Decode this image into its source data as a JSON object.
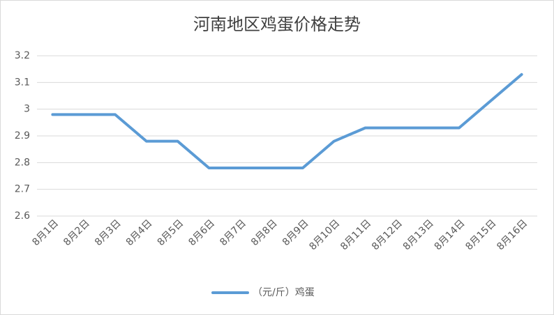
{
  "chart_data": {
    "type": "line",
    "title": "河南地区鸡蛋价格走势",
    "categories": [
      "8月1日",
      "8月2日",
      "8月3日",
      "8月4日",
      "8月5日",
      "8月6日",
      "8月7日",
      "8月8日",
      "8月9日",
      "8月10日",
      "8月11日",
      "8月12日",
      "8月13日",
      "8月14日",
      "8月15日",
      "8月16日"
    ],
    "series": [
      {
        "name": "（元/斤）鸡蛋",
        "color": "#5b9bd5",
        "values": [
          2.98,
          2.98,
          2.98,
          2.88,
          2.88,
          2.78,
          2.78,
          2.78,
          2.78,
          2.88,
          2.93,
          2.93,
          2.93,
          2.93,
          3.03,
          3.13
        ]
      }
    ],
    "ylim": [
      2.6,
      3.2
    ],
    "yticks": [
      2.6,
      2.7,
      2.8,
      2.9,
      3,
      3.1,
      3.2
    ],
    "grid": true,
    "legend": "bottom"
  }
}
